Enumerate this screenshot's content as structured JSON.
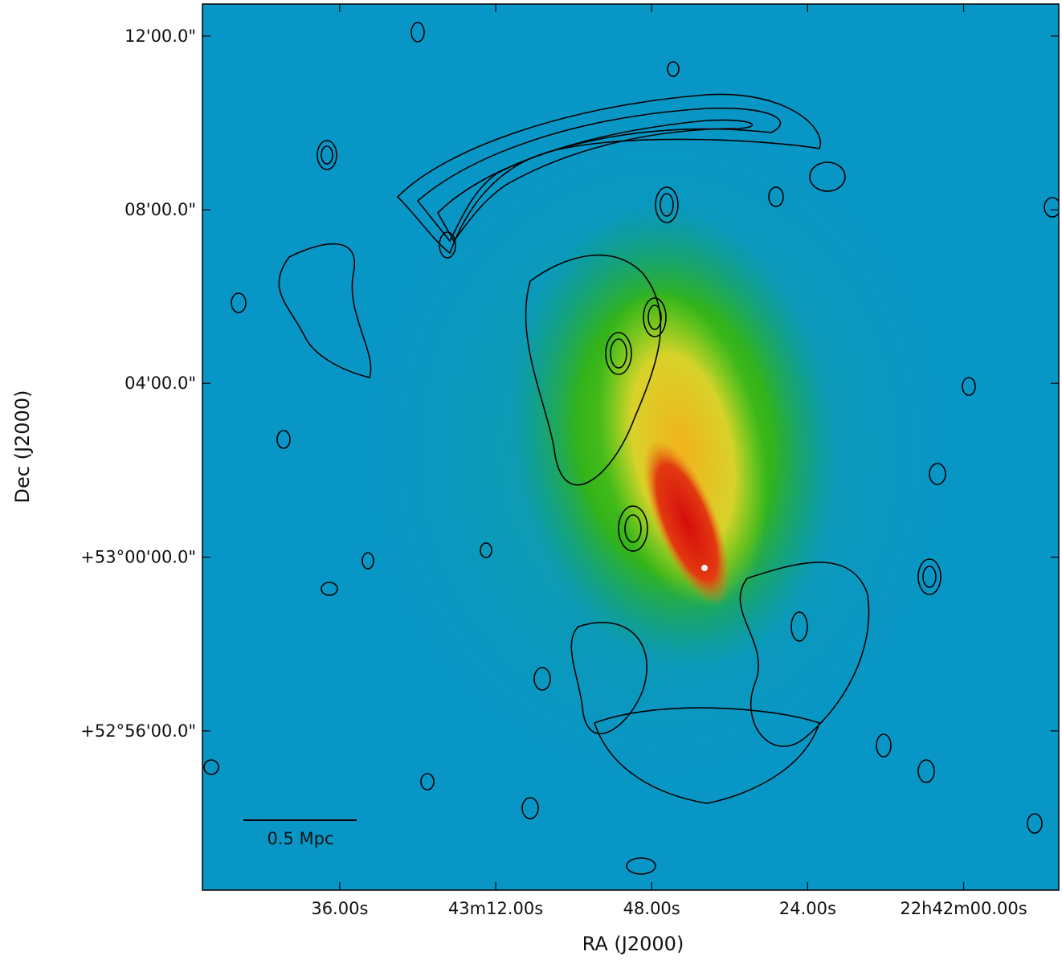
{
  "chart_data": {
    "type": "image",
    "xlabel": "RA (J2000)",
    "ylabel": "Dec (J2000)",
    "xlim": [
      340.988,
      340.439
    ],
    "xticks": [
      {
        "value": 340.9,
        "label": "36.00s"
      },
      {
        "value": 340.8,
        "label": "43m12.00s"
      },
      {
        "value": 340.7,
        "label": "48.00s"
      },
      {
        "value": 340.6,
        "label": "24.00s"
      },
      {
        "value": 340.5,
        "label": "22h42m00.00s"
      }
    ],
    "ylim": [
      52.8722,
      53.2123
    ],
    "yticks": [
      {
        "value": 53.2,
        "label": "12'00.0\""
      },
      {
        "value": 53.1333,
        "label": "08'00.0\""
      },
      {
        "value": 53.0667,
        "label": "04'00.0\""
      },
      {
        "value": 53.0,
        "label": "+53°00'00.0\""
      },
      {
        "value": 52.9333,
        "label": "+52°56'00.0\""
      }
    ],
    "annotations": [
      "0.5 Mpc"
    ]
  }
}
